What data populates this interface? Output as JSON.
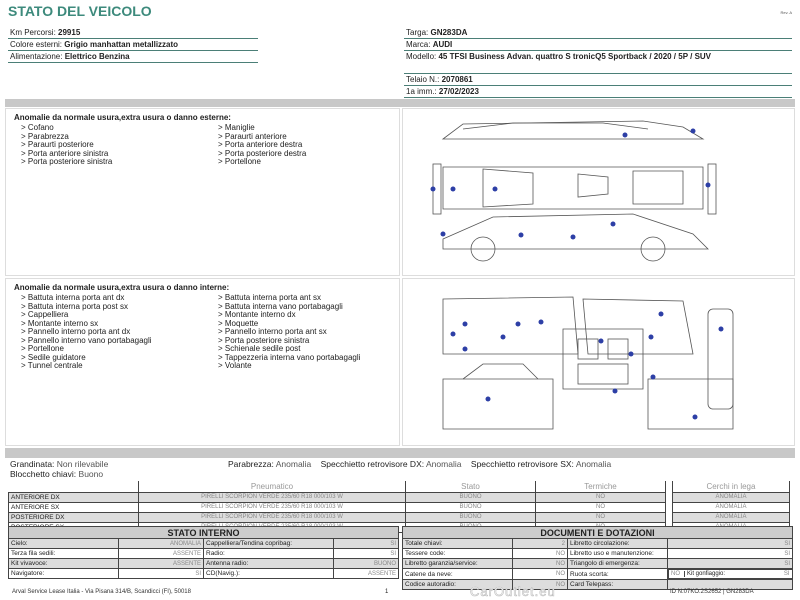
{
  "header": {
    "title": "STATO DEL VEICOLO",
    "rev": "Rev. A"
  },
  "vehicle_left": [
    {
      "label": "Km Percorsi:",
      "value": "29915"
    },
    {
      "label": "Colore esterni:",
      "value": "Grigio manhattan metallizzato"
    },
    {
      "label": "Alimentazione:",
      "value": "Elettrico Benzina"
    }
  ],
  "vehicle_right": [
    {
      "label": "Targa:",
      "value": "GN283DA"
    },
    {
      "label": "Marca:",
      "value": "AUDI"
    },
    {
      "label": "Modello:",
      "value": "45 TFSI Business Advan. quattro S tronicQ5 Sportback / 2020 / 5P / SUV"
    },
    {
      "label": "Telaio N.:",
      "value": "2070861"
    },
    {
      "label": "1a imm.:",
      "value": "27/02/2023"
    }
  ],
  "exterior": {
    "title": "Anomalie da normale usura,extra usura o danno esterne:",
    "col1": [
      "> Cofano",
      "> Parabrezza",
      "> Paraurti posteriore",
      "> Porta anteriore sinistra",
      "> Porta posteriore sinistra"
    ],
    "col2": [
      "> Maniglie",
      "> Paraurti anteriore",
      "> Porta anteriore destra",
      "> Porta posteriore destra",
      "> Portellone"
    ]
  },
  "interior": {
    "title": "Anomalie da normale usura,extra usura o danno interne:",
    "col1": [
      "> Battuta interna porta ant dx",
      "> Battuta interna porta post sx",
      "> Cappelliera",
      "> Montante interno sx",
      "> Pannello interno porta ant dx",
      "> Pannello interno vano portabagagli",
      "> Portellone",
      "> Sedile guidatore",
      "> Tunnel centrale"
    ],
    "col2": [
      "> Battuta interna porta ant sx",
      "> Battuta interna vano portabagagli",
      "> Montante interno dx",
      "> Moquette",
      "> Pannello interno porta ant sx",
      "> Porta posteriore sinistra",
      "> Schienale sedile post",
      "> Tappezzeria interna vano portabagagli",
      "> Volante"
    ]
  },
  "checks": [
    {
      "label": "Grandinata:",
      "value": "Non rilevabile"
    },
    {
      "label": "Blocchetto chiavi:",
      "value": "Buono"
    },
    {
      "label": "Parabrezza:",
      "value": "Anomalia"
    },
    {
      "label": "Specchietto retrovisore DX:",
      "value": "Anomalia"
    },
    {
      "label": "Specchietto retrovisore SX:",
      "value": "Anomalia"
    }
  ],
  "tyres": {
    "headers": [
      "Pneumatico",
      "Stato",
      "Termiche",
      "Cerchi in lega"
    ],
    "rows": [
      {
        "pos": "ANTERIORE DX",
        "tyre": "PIRELLI SCORPION VERDE 235/60 R18 000/103 W",
        "stato": "BUONO",
        "term": "NO",
        "cerchi": "ANOMALIA"
      },
      {
        "pos": "ANTERIORE SX",
        "tyre": "PIRELLI SCORPION VERDE 235/60 R18 000/103 W",
        "stato": "BUONO",
        "term": "NO",
        "cerchi": "ANOMALIA"
      },
      {
        "pos": "POSTERIORE DX",
        "tyre": "PIRELLI SCORPION VERDE 235/60 R18 000/103 W",
        "stato": "BUONO",
        "term": "NO",
        "cerchi": "ANOMALIA"
      },
      {
        "pos": "POSTERIORE SX",
        "tyre": "PIRELLI SCORPION VERDE 235/60 R18 000/103 W",
        "stato": "BUONO",
        "term": "NO",
        "cerchi": "ANOMALIA"
      }
    ]
  },
  "stato_interno": {
    "title": "STATO INTERNO",
    "rows": [
      [
        "Cielo:",
        "ANOMALIA",
        "Cappelliera/Tendina copribag:",
        "SI"
      ],
      [
        "Terza fila sedili:",
        "ASSENTE",
        "Radio:",
        "SI"
      ],
      [
        "Kit vivavoce:",
        "ASSENTE",
        "Antenna radio:",
        "BUONO"
      ],
      [
        "Navigatore:",
        "SI",
        "CD(Navig.):",
        "ASSENTE"
      ]
    ]
  },
  "documenti": {
    "title": "DOCUMENTI E DOTAZIONI",
    "rows": [
      [
        "Totale chiavi:",
        "2",
        "Libretto circolazione:",
        "SI"
      ],
      [
        "Tessere code:",
        "NO",
        "Libretto uso e manutenzione:",
        "SI"
      ],
      [
        "Libretto garanzia/service:",
        "NO",
        "Triangolo di emergenza:",
        "SI"
      ],
      [
        "Catene da neve:",
        "NO",
        "Ruota scorta:",
        "NO"
      ],
      [
        "Codice autoradio:",
        "NO",
        "Card Telepass:",
        ""
      ]
    ],
    "extra": {
      "label": "Kit gonfiaggio:",
      "value": "SI"
    }
  },
  "footer": {
    "address": "Arval Service Lease Italia - Via Pisana 314/B, Scandicci (FI), 50018",
    "page": "1",
    "code": "ID N.07KO.2S2652 | GN283DA",
    "watermark": "CarOutlet.eu"
  },
  "colors": {
    "title": "#3d8a7c",
    "dots": "#2d3fa6"
  }
}
